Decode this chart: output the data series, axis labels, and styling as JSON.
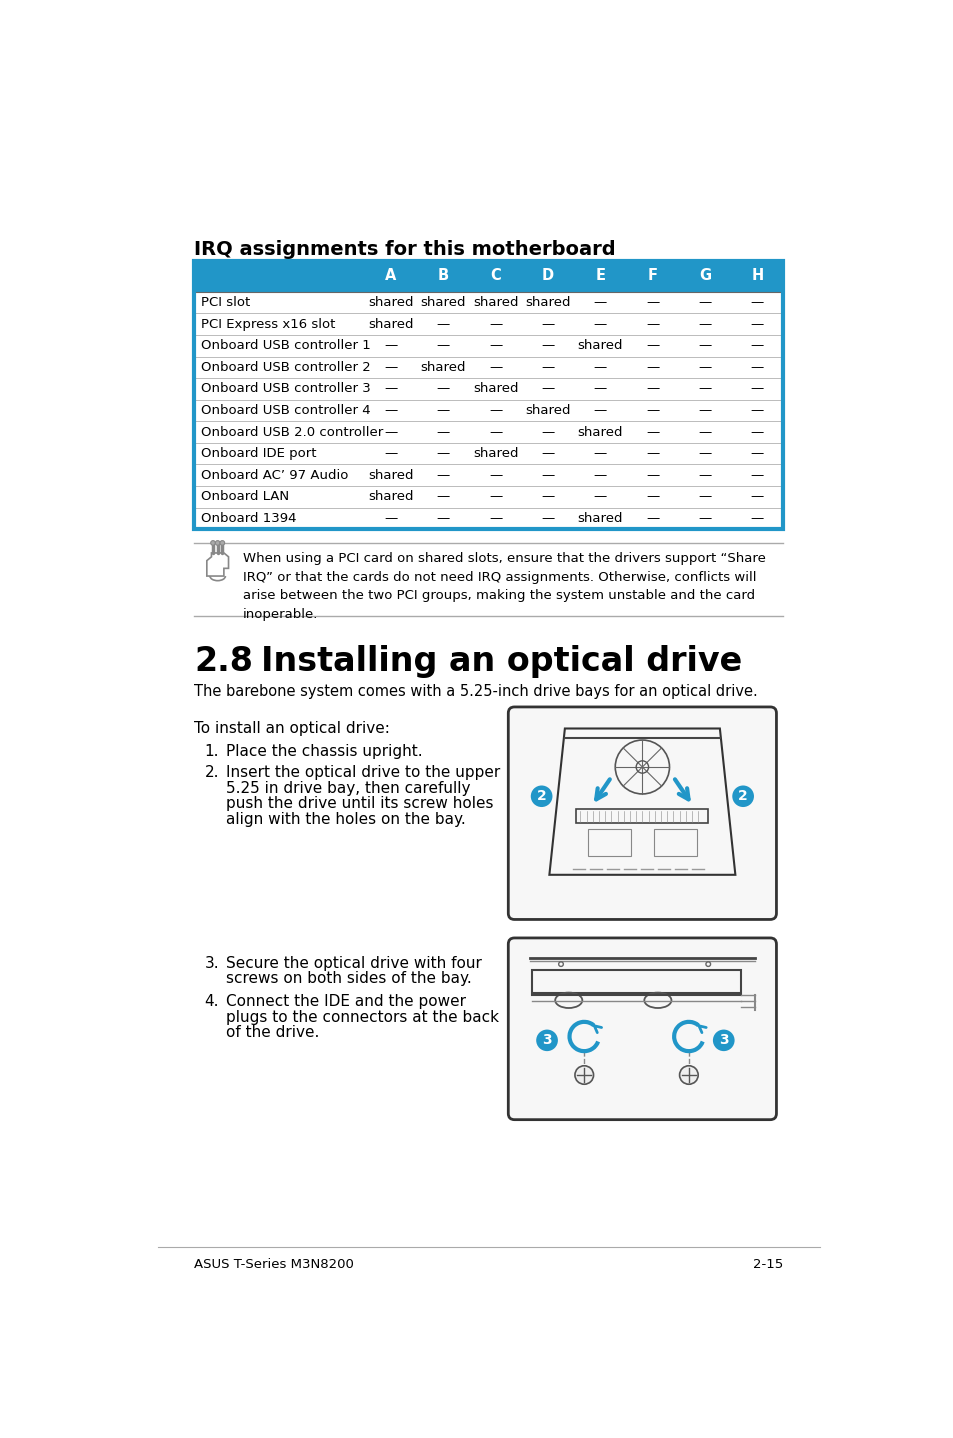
{
  "page_bg": "#ffffff",
  "irq_title": "IRQ assignments for this motherboard",
  "table_header_bg": "#2196c8",
  "table_header_color": "#ffffff",
  "table_border_color": "#2196c8",
  "table_text_color": "#000000",
  "col_headers": [
    "",
    "A",
    "B",
    "C",
    "D",
    "E",
    "F",
    "G",
    "H"
  ],
  "rows": [
    [
      "PCI slot",
      "shared",
      "shared",
      "shared",
      "shared",
      "—",
      "—",
      "—",
      "—"
    ],
    [
      "PCI Express x16 slot",
      "shared",
      "—",
      "—",
      "—",
      "—",
      "—",
      "—",
      "—"
    ],
    [
      "Onboard USB controller 1",
      "—",
      "—",
      "—",
      "—",
      "shared",
      "—",
      "—",
      "—"
    ],
    [
      "Onboard USB controller 2",
      "—",
      "shared",
      "—",
      "—",
      "—",
      "—",
      "—",
      "—"
    ],
    [
      "Onboard USB controller 3",
      "—",
      "—",
      "shared",
      "—",
      "—",
      "—",
      "—",
      "—"
    ],
    [
      "Onboard USB controller 4",
      "—",
      "—",
      "—",
      "shared",
      "—",
      "—",
      "—",
      "—"
    ],
    [
      "Onboard USB 2.0 controller",
      "—",
      "—",
      "—",
      "—",
      "shared",
      "—",
      "—",
      "—"
    ],
    [
      "Onboard IDE port",
      "—",
      "—",
      "shared",
      "—",
      "—",
      "—",
      "—",
      "—"
    ],
    [
      "Onboard AC’ 97 Audio",
      "shared",
      "—",
      "—",
      "—",
      "—",
      "—",
      "—",
      "—"
    ],
    [
      "Onboard LAN",
      "shared",
      "—",
      "—",
      "—",
      "—",
      "—",
      "—",
      "—"
    ],
    [
      "Onboard 1394",
      "—",
      "—",
      "—",
      "—",
      "shared",
      "—",
      "—",
      "—"
    ]
  ],
  "note_text": "When using a PCI card on shared slots, ensure that the drivers support “Share\nIRQ” or that the cards do not need IRQ assignments. Otherwise, conflicts will\narise between the two PCI groups, making the system unstable and the card\ninoperable.",
  "section_number": "2.8",
  "section_title": "Installing an optical drive",
  "section_intro": "The barebone system comes with a 5.25-inch drive bays for an optical drive.",
  "to_install_text": "To install an optical drive:",
  "step1": "Place the chassis upright.",
  "step2_line1": "Insert the optical drive to the upper",
  "step2_line2": "5.25 in drive bay, then carefully",
  "step2_line3": "push the drive until its screw holes",
  "step2_line4": "align with the holes on the bay.",
  "step3_line1": "Secure the optical drive with four",
  "step3_line2": "screws on both sides of the bay.",
  "step4_line1": "Connect the IDE and the power",
  "step4_line2": "plugs to the connectors at the back",
  "step4_line3": "of the drive.",
  "footer_left": "ASUS T-Series M3N8200",
  "footer_right": "2-15",
  "blue": "#2196c8"
}
